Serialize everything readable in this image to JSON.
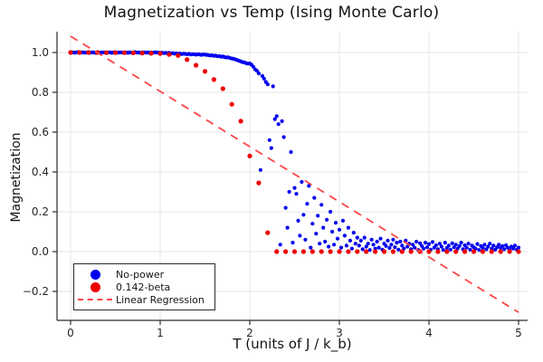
{
  "chart_data": {
    "type": "scatter",
    "title": "Magnetization vs Temp (Ising Monte Carlo)",
    "xlabel": "T (units of J / k_b)",
    "ylabel": "Magnetization",
    "xlim": [
      -0.15,
      5.1
    ],
    "ylim": [
      -0.345,
      1.105
    ],
    "grid": true,
    "legend_position": "bottom-left",
    "xticks": [
      {
        "v": 0,
        "label": "0"
      },
      {
        "v": 1,
        "label": "1"
      },
      {
        "v": 2,
        "label": "2"
      },
      {
        "v": 3,
        "label": "3"
      },
      {
        "v": 4,
        "label": "4"
      },
      {
        "v": 5,
        "label": "5"
      }
    ],
    "yticks": [
      {
        "v": -0.2,
        "label": "−0.2"
      },
      {
        "v": 0.0,
        "label": "0.0"
      },
      {
        "v": 0.2,
        "label": "0.2"
      },
      {
        "v": 0.4,
        "label": "0.4"
      },
      {
        "v": 0.6,
        "label": "0.6"
      },
      {
        "v": 0.8,
        "label": "0.8"
      },
      {
        "v": 1.0,
        "label": "1.0"
      }
    ],
    "style": {
      "background": "#ffffff",
      "grid_color": "#e5e5e5",
      "axis_color": "#2b2b2b",
      "tick_text_color": "#262626",
      "legend_border_color": "#2b2b2b",
      "legend_background": "#ffffff"
    },
    "series": [
      {
        "name": "No-power",
        "type": "scatter",
        "color": "#0000ee",
        "marker_size": 2.1,
        "x_start": 0.0,
        "x_step": 0.02,
        "y": [
          1.0,
          1.001,
          0.999,
          1.0,
          1.002,
          0.998,
          1.0,
          1.001,
          0.999,
          1.0,
          1.0,
          0.999,
          1.001,
          1.0,
          0.998,
          1.002,
          1.0,
          0.999,
          1.001,
          1.0,
          0.999,
          1.0,
          1.001,
          0.998,
          1.0,
          1.002,
          0.999,
          1.0,
          1.001,
          0.999,
          1.0,
          1.0,
          0.998,
          1.001,
          0.999,
          1.0,
          1.002,
          0.999,
          1.0,
          0.998,
          1.001,
          1.0,
          0.999,
          1.001,
          0.998,
          1.0,
          0.999,
          1.001,
          1.0,
          0.999,
          0.998,
          0.999,
          0.997,
          0.998,
          0.996,
          0.998,
          0.995,
          0.997,
          0.994,
          0.996,
          0.993,
          0.995,
          0.992,
          0.994,
          0.993,
          0.991,
          0.993,
          0.99,
          0.992,
          0.991,
          0.989,
          0.991,
          0.99,
          0.988,
          0.99,
          0.989,
          0.988,
          0.987,
          0.985,
          0.986,
          0.983,
          0.984,
          0.981,
          0.982,
          0.979,
          0.98,
          0.977,
          0.975,
          0.976,
          0.972,
          0.97,
          0.968,
          0.965,
          0.962,
          0.958,
          0.955,
          0.952,
          0.95,
          0.946,
          0.944,
          0.945,
          0.938,
          0.928,
          0.915,
          0.908,
          0.895,
          0.41,
          0.882,
          0.868,
          0.852,
          0.84,
          0.56,
          0.52,
          0.83,
          0.665,
          0.68,
          0.64,
          0.035,
          0.655,
          0.575,
          0.22,
          0.12,
          0.3,
          0.5,
          0.045,
          0.32,
          0.29,
          0.155,
          0.08,
          0.35,
          0.185,
          0.06,
          0.24,
          0.33,
          0.02,
          0.14,
          0.27,
          0.09,
          0.18,
          0.04,
          0.235,
          0.12,
          0.05,
          0.16,
          0.025,
          0.2,
          0.1,
          0.035,
          0.145,
          0.065,
          0.11,
          0.02,
          0.155,
          0.08,
          0.03,
          0.12,
          0.055,
          0.015,
          0.095,
          0.04,
          0.07,
          0.03,
          0.055,
          0.012,
          0.07,
          0.025,
          0.04,
          0.008,
          0.06,
          0.035,
          0.015,
          0.05,
          0.02,
          0.065,
          0.01,
          0.04,
          0.028,
          0.055,
          0.018,
          0.035,
          0.06,
          0.022,
          0.045,
          0.01,
          0.05,
          0.03,
          0.015,
          0.055,
          0.025,
          0.04,
          0.012,
          0.035,
          0.02,
          0.05,
          0.008,
          0.042,
          0.028,
          0.015,
          0.045,
          0.022,
          0.038,
          0.01,
          0.048,
          0.02,
          0.032,
          0.012,
          0.04,
          0.025,
          0.008,
          0.045,
          0.018,
          0.03,
          0.01,
          0.042,
          0.022,
          0.035,
          0.015,
          0.028,
          0.045,
          0.012,
          0.032,
          0.02,
          0.04,
          0.01,
          0.03,
          0.022,
          0.015,
          0.038,
          0.008,
          0.028,
          0.018,
          0.035,
          0.012,
          0.025,
          0.04,
          0.015,
          0.03,
          0.01,
          0.022,
          0.035,
          0.018,
          0.028,
          0.012,
          0.032,
          0.02,
          0.008,
          0.025,
          0.015,
          0.03,
          0.01,
          0.02
        ]
      },
      {
        "name": "0.142-beta",
        "type": "scatter",
        "color": "#ee0000",
        "marker_size": 2.6,
        "x_start": 0.0,
        "x_step": 0.1,
        "y": [
          1.0,
          1.0,
          1.0,
          1.0,
          0.999,
          0.999,
          0.999,
          0.998,
          0.997,
          0.996,
          0.995,
          0.99,
          0.985,
          0.964,
          0.936,
          0.905,
          0.864,
          0.818,
          0.74,
          0.655,
          0.48,
          0.345,
          0.095,
          0.0,
          0.0,
          0.0,
          0.0,
          0.0,
          0.0,
          0.0,
          0.0,
          0.0,
          0.0,
          0.0,
          0.0,
          0.0,
          0.0,
          0.0,
          0.0,
          0.0,
          0.0,
          0.0,
          0.0,
          0.0,
          0.0,
          0.0,
          0.0,
          0.0,
          0.0,
          0.0,
          0.0
        ]
      },
      {
        "name": "Linear Regression",
        "type": "line",
        "style": "dashed",
        "color": "#ff4444",
        "x": [
          0.0,
          5.0
        ],
        "y": [
          1.082,
          -0.305
        ]
      }
    ]
  }
}
